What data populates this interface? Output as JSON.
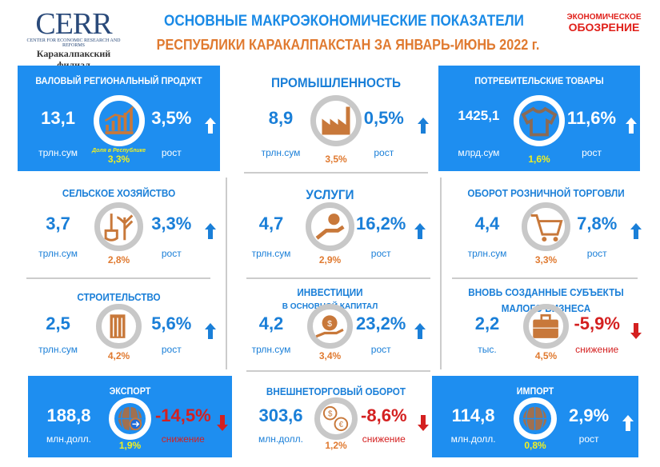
{
  "header": {
    "logo": {
      "name": "CERR",
      "subtitle": "CENTER FOR ECONOMIC RESEARCH AND REFORMS",
      "branch_line1": "Каракалпакский",
      "branch_line2": "филиал"
    },
    "title_line1": "ОСНОВНЫЕ МАКРОЭКОНОМИЧЕСКИЕ ПОКАЗАТЕЛИ",
    "title_line2": "РЕСПУБЛИКИ КАРАКАЛПАКСТАН ЗА ЯНВАРЬ-ИЮНЬ 2022 г.",
    "partner_logo": {
      "line1": "ЭКОНОМИЧЕСКОЕ",
      "line2": "ОБОЗРЕНИЕ"
    }
  },
  "colors": {
    "blue": "#1e8ef0",
    "text_blue": "#1a7fd8",
    "orange": "#e07a30",
    "yellow": "#f0f020",
    "red": "#d42020"
  },
  "cards": [
    {
      "title": "ВАЛОВЫЙ РЕГИОНАЛЬНЫЙ ПРОДУКТ",
      "value": "13,1",
      "unit": "трлн.сум",
      "change": "3,5%",
      "change_label": "рост",
      "trend": "up",
      "share": "3,3%",
      "share_label": "Доля в Республике",
      "icon": "chart-growth-icon",
      "theme": "blue"
    },
    {
      "title": "ПРОМЫШЛЕННОСТЬ",
      "value": "8,9",
      "unit": "трлн.сум",
      "change": "0,5%",
      "change_label": "рост",
      "trend": "up",
      "share": "3,5%",
      "icon": "factory-icon",
      "theme": "white"
    },
    {
      "title": "ПОТРЕБИТЕЛЬСКИЕ ТОВАРЫ",
      "value": "1425,1",
      "unit": "млрд.сум",
      "change": "11,6%",
      "change_label": "рост",
      "trend": "up",
      "share": "1,6%",
      "icon": "tshirt-icon",
      "theme": "blue"
    },
    {
      "title": "СЕЛЬСКОЕ ХОЗЯЙСТВО",
      "value": "3,7",
      "unit": "трлн.сум",
      "change": "3,3%",
      "change_label": "рост",
      "trend": "up",
      "share": "2,8%",
      "icon": "shovel-plant-icon",
      "theme": "white"
    },
    {
      "title": "УСЛУГИ",
      "value": "4,7",
      "unit": "трлн.сум",
      "change": "16,2%",
      "change_label": "рост",
      "trend": "up",
      "share": "2,9%",
      "icon": "hand-service-icon",
      "theme": "white"
    },
    {
      "title": "ОБОРОТ РОЗНИЧНОЙ ТОРГОВЛИ",
      "value": "4,4",
      "unit": "трлн.сум",
      "change": "7,8%",
      "change_label": "рост",
      "trend": "up",
      "share": "3,3%",
      "icon": "shopping-cart-icon",
      "theme": "white"
    },
    {
      "title": "СТРОИТЕЛЬСТВО",
      "value": "2,5",
      "unit": "трлн.сум",
      "change": "5,6%",
      "change_label": "рост",
      "trend": "up",
      "share": "4,2%",
      "icon": "building-icon",
      "theme": "white"
    },
    {
      "title": "ИНВЕСТИЦИИ",
      "subtitle": "В ОСНОВНОЙ КАПИТАЛ",
      "value": "4,2",
      "unit": "трлн.сум",
      "change": "23,2%",
      "change_label": "рост",
      "trend": "up",
      "share": "3,4%",
      "icon": "money-bag-hand-icon",
      "theme": "white"
    },
    {
      "title": "ВНОВЬ СОЗДАННЫЕ СУБЪЕКТЫ",
      "subtitle": "МАЛОГО БИЗНЕСА",
      "value": "2,2",
      "unit": "тыс.",
      "change": "-5,9%",
      "change_label": "снижение",
      "trend": "down",
      "share": "4,5%",
      "icon": "briefcase-icon",
      "theme": "white"
    },
    {
      "title": "ЭКСПОРТ",
      "value": "188,8",
      "unit": "млн.долл.",
      "change": "-14,5%",
      "change_label": "снижение",
      "trend": "down",
      "share": "1,9%",
      "icon": "globe-export-icon",
      "theme": "blue"
    },
    {
      "title": "ВНЕШНЕТОРГОВЫЙ ОБОРОТ",
      "value": "303,6",
      "unit": "млн.долл.",
      "change": "-8,6%",
      "change_label": "снижение",
      "trend": "down",
      "share": "1,2%",
      "icon": "currency-exchange-icon",
      "theme": "white"
    },
    {
      "title": "ИМПОРТ",
      "value": "114,8",
      "unit": "млн.долл.",
      "change": "2,9%",
      "change_label": "рост",
      "trend": "up",
      "share": "0,8%",
      "icon": "globe-import-icon",
      "theme": "blue"
    }
  ]
}
